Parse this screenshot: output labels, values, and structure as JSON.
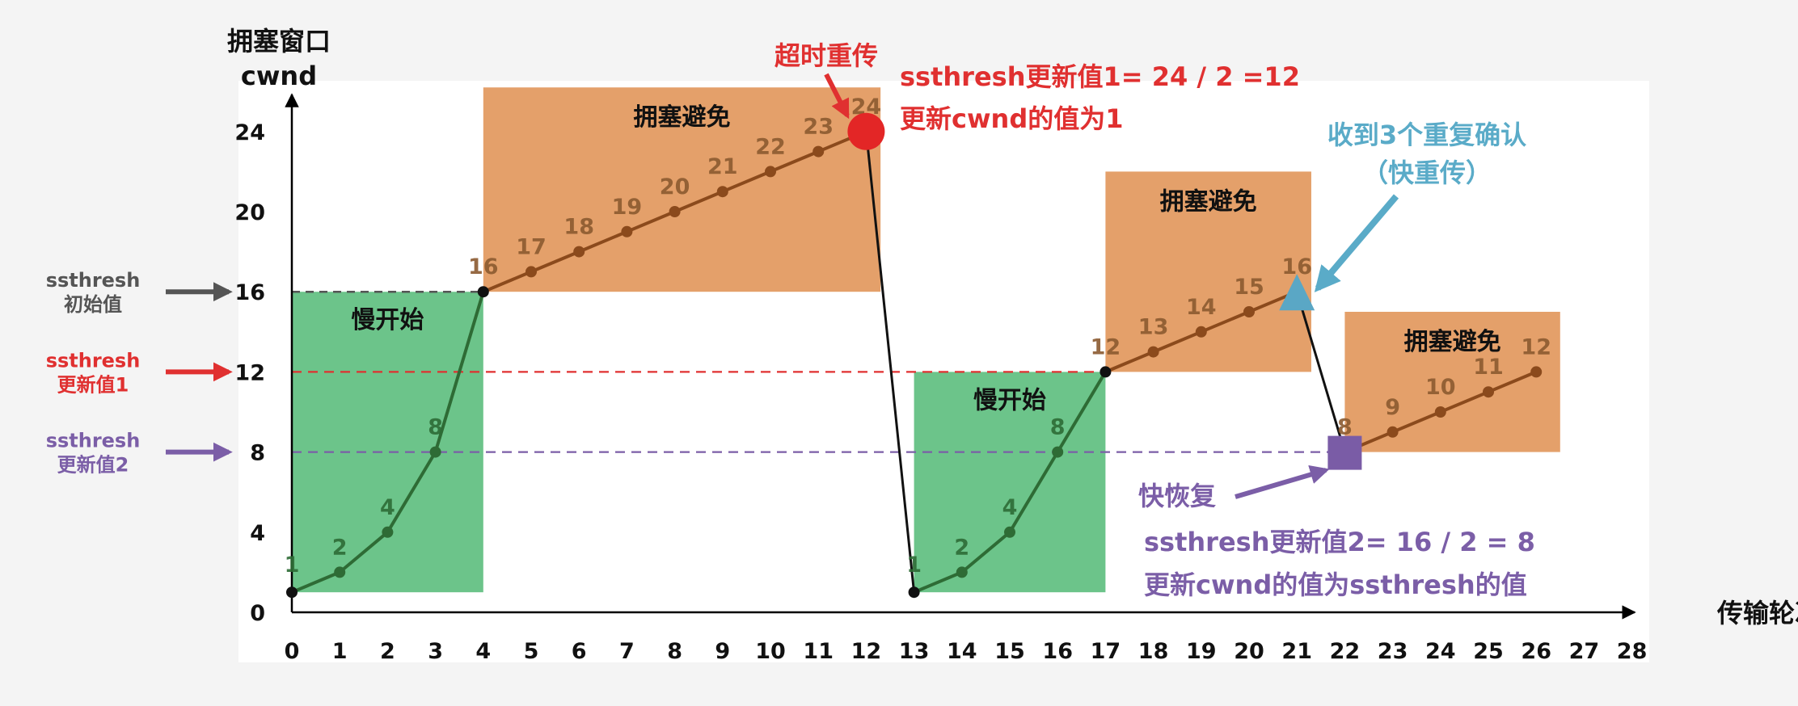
{
  "chart_data": {
    "type": "line",
    "ylabel": [
      "拥塞窗口",
      "cwnd"
    ],
    "xlabel": "传输轮次",
    "x_ticks": [
      0,
      1,
      2,
      3,
      4,
      5,
      6,
      7,
      8,
      9,
      10,
      11,
      12,
      13,
      14,
      15,
      16,
      17,
      18,
      19,
      20,
      21,
      22,
      23,
      24,
      25,
      26,
      27,
      28
    ],
    "y_ticks": [
      0,
      4,
      8,
      12,
      16,
      20,
      24
    ],
    "xlim": [
      0,
      28
    ],
    "ylim": [
      0,
      24
    ],
    "series": [
      {
        "x": [
          0,
          1,
          2,
          3,
          4,
          5,
          6,
          7,
          8,
          9,
          10,
          11,
          12,
          13,
          14,
          15,
          16,
          17,
          18,
          19,
          20,
          21,
          22,
          23,
          24,
          25,
          26
        ],
        "y": [
          1,
          2,
          4,
          8,
          16,
          17,
          18,
          19,
          20,
          21,
          22,
          23,
          24,
          1,
          2,
          4,
          8,
          12,
          13,
          14,
          15,
          16,
          8,
          9,
          10,
          11,
          12
        ]
      }
    ],
    "thresholds": [
      {
        "value": 16,
        "label": [
          "ssthresh",
          "初始值"
        ],
        "color": "#555555"
      },
      {
        "value": 12,
        "label": [
          "ssthresh",
          "更新值1"
        ],
        "color": "#e03030"
      },
      {
        "value": 8,
        "label": [
          "ssthresh",
          "更新值2"
        ],
        "color": "#7b5ea7"
      }
    ],
    "regions": [
      {
        "type": "slow",
        "label": "慢开始",
        "x0": 0,
        "x1": 4,
        "y0": 1,
        "y1": 16
      },
      {
        "type": "avoid",
        "label": "拥塞避免",
        "x0": 4,
        "x1": 12.3,
        "y0": 16,
        "y1": 26.2
      },
      {
        "type": "slow",
        "label": "慢开始",
        "x0": 13,
        "x1": 17,
        "y0": 1,
        "y1": 12
      },
      {
        "type": "avoid",
        "label": "拥塞避免",
        "x0": 17,
        "x1": 21.3,
        "y0": 12,
        "y1": 22
      },
      {
        "type": "avoid",
        "label": "拥塞避免",
        "x0": 22,
        "x1": 26.5,
        "y0": 8,
        "y1": 15
      }
    ],
    "annotations": {
      "timeout": "超时重传",
      "timeout_note": [
        "ssthresh更新值1= 24 / 2 =12",
        "更新cwnd的值为1"
      ],
      "dupack": [
        "收到3个重复确认",
        "（快重传）"
      ],
      "fast_recovery": "快恢复",
      "fast_recovery_note": [
        "ssthresh更新值2= 16 / 2 = 8",
        "更新cwnd的值为ssthresh的值"
      ]
    },
    "colors": {
      "slow": "#6cc48a",
      "avoid": "#e4a06a",
      "line": "#2e6b35",
      "avoid_line": "#8b4a1c",
      "avoid_label": "#8b5a30",
      "red": "#e03030",
      "purple": "#7b5ea7",
      "blue": "#5aabc8",
      "grey": "#555555"
    }
  }
}
